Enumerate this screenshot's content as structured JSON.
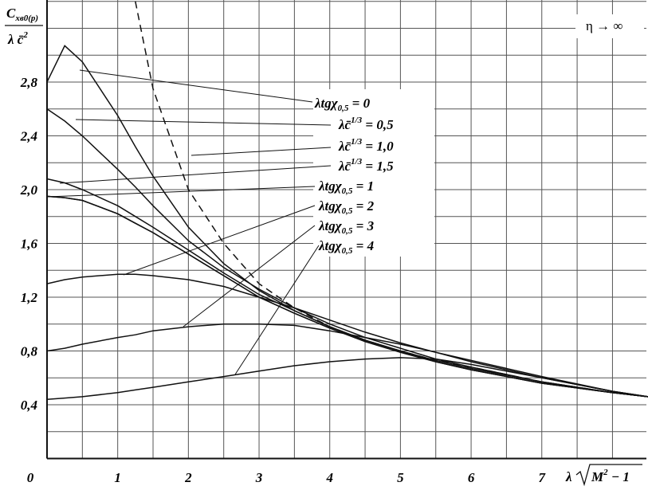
{
  "chart_data": {
    "type": "line",
    "y_label": {
      "numerator": "C",
      "numerator_sub": "xв0(p)",
      "denominator": "λ c̄",
      "denominator_sup": "2"
    },
    "x_label": {
      "main": "λ",
      "radicand": "M",
      "sup": "2",
      "rest": " − 1"
    },
    "annotation": "η → ∞",
    "x": [
      0,
      0.25,
      0.5,
      1,
      1.25,
      1.5,
      2,
      2.5,
      3,
      3.5,
      4,
      4.5,
      5,
      5.5,
      6,
      7,
      8,
      8.5
    ],
    "series": [
      {
        "name": {
          "main": "λtgχ",
          "sub": "0,5",
          "value": " = 0"
        },
        "color": "#111",
        "values": [
          2.8,
          3.07,
          2.95,
          2.55,
          2.32,
          2.1,
          1.72,
          1.45,
          1.25,
          1.1,
          0.98,
          0.88,
          0.8,
          0.72,
          0.66,
          0.56,
          0.49,
          0.46
        ]
      },
      {
        "name": {
          "main": "λc̄",
          "sup": "1/3",
          "value": " = 0,5"
        },
        "color": "#111",
        "values": [
          2.6,
          2.51,
          2.4,
          2.15,
          2.02,
          1.88,
          1.62,
          1.42,
          1.26,
          1.12,
          1.0,
          0.9,
          0.82,
          0.74,
          0.68,
          0.57,
          0.49,
          0.46
        ]
      },
      {
        "name": {
          "main": "λc̄",
          "sup": "1/3",
          "value": " = 1,0"
        },
        "color": "#111",
        "values": [
          2.08,
          2.05,
          2.0,
          1.88,
          1.8,
          1.72,
          1.55,
          1.38,
          1.22,
          1.1,
          0.98,
          0.88,
          0.8,
          0.73,
          0.67,
          0.57,
          0.49,
          0.46
        ]
      },
      {
        "name": {
          "main": "λc̄",
          "sup": "1/3",
          "value": " = 1,5"
        },
        "color": "#111",
        "values": [
          1.95,
          1.94,
          1.92,
          1.82,
          1.75,
          1.68,
          1.52,
          1.36,
          1.2,
          1.08,
          0.97,
          0.87,
          0.79,
          0.72,
          0.66,
          0.56,
          0.49,
          0.46
        ]
      },
      {
        "name": {
          "main": "λtgχ",
          "sub": "0,5",
          "value": " = 1"
        },
        "color": "#111",
        "values": [
          1.95,
          1.94,
          1.92,
          1.82,
          1.75,
          1.68,
          1.52,
          1.36,
          1.2,
          1.08,
          0.97,
          0.87,
          0.79,
          0.72,
          0.66,
          0.56,
          0.49,
          0.46
        ]
      },
      {
        "name": {
          "main": "λtgχ",
          "sub": "0,5",
          "value": " = 2"
        },
        "color": "#111",
        "values": [
          1.3,
          1.33,
          1.35,
          1.37,
          1.37,
          1.36,
          1.33,
          1.28,
          1.2,
          1.12,
          1.03,
          0.94,
          0.86,
          0.79,
          0.72,
          0.6,
          0.5,
          0.46
        ]
      },
      {
        "name": {
          "main": "λtgχ",
          "sub": "0,5",
          "value": " = 3"
        },
        "color": "#111",
        "values": [
          0.8,
          0.82,
          0.85,
          0.9,
          0.92,
          0.95,
          0.98,
          1.0,
          1.0,
          0.99,
          0.95,
          0.9,
          0.85,
          0.79,
          0.73,
          0.61,
          0.5,
          0.46
        ]
      },
      {
        "name": {
          "main": "λtgχ",
          "sub": "0,5",
          "value": " = 4"
        },
        "color": "#111",
        "values": [
          0.44,
          0.45,
          0.46,
          0.49,
          0.51,
          0.53,
          0.57,
          0.61,
          0.65,
          0.69,
          0.72,
          0.74,
          0.75,
          0.74,
          0.7,
          0.6,
          0.5,
          0.46
        ]
      },
      {
        "color": "#111",
        "dash": true,
        "values": [
          null,
          null,
          null,
          null,
          3.4,
          2.75,
          2.0,
          1.6,
          1.3,
          1.12,
          0.98,
          0.88,
          0.8,
          0.73,
          0.68,
          0.57,
          0.49,
          0.46
        ]
      }
    ],
    "xlim": [
      0,
      8.48
    ],
    "ylim": [
      0,
      3.41
    ],
    "xticks": [
      0,
      1,
      2,
      3,
      4,
      5,
      6,
      7
    ],
    "yticks": [
      {
        "value": 0.4,
        "label": "0,4"
      },
      {
        "value": 0.8,
        "label": "0,8"
      },
      {
        "value": 1.2,
        "label": "1,2"
      },
      {
        "value": 1.6,
        "label": "1,6"
      },
      {
        "value": 2.0,
        "label": "2,0"
      },
      {
        "value": 2.4,
        "label": "2,4"
      },
      {
        "value": 2.8,
        "label": "2,8"
      }
    ],
    "grid": true,
    "grid_x": [
      0.5,
      1.5,
      2.5,
      3.5,
      4.5,
      5.5,
      6.5,
      7.5,
      8
    ],
    "grid_y": [
      0.2,
      0.6,
      1.0,
      1.4,
      1.8,
      2.2,
      2.6,
      3.0,
      3.2,
      3.4
    ]
  }
}
